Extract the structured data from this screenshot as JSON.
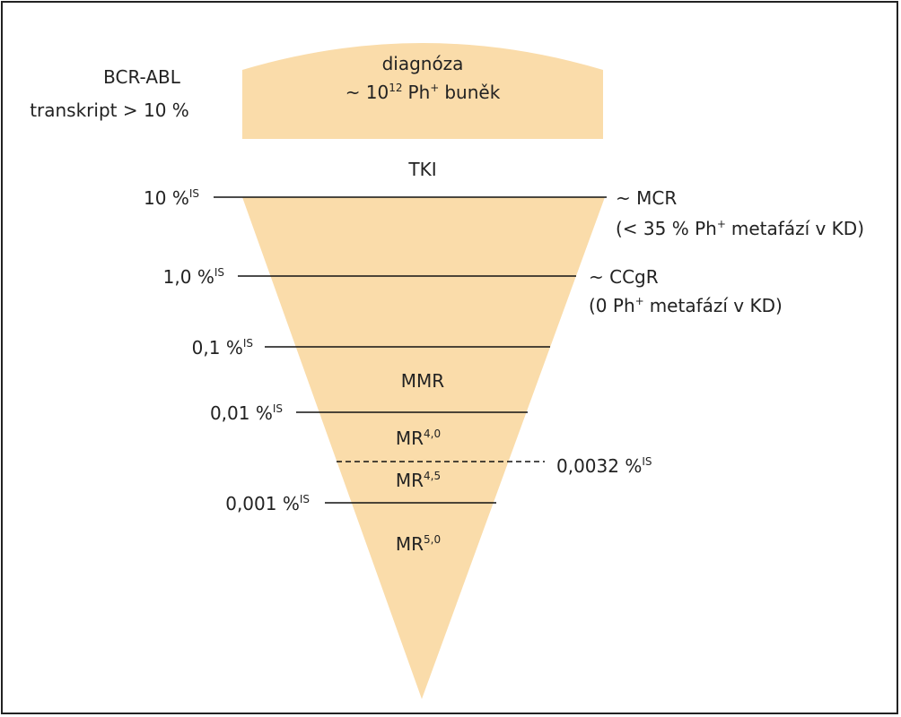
{
  "header_note": {
    "line1": "BCR-ABL",
    "line2": "transkript > 10 %"
  },
  "diagnosis": {
    "line1": "diagnóza",
    "prefix": "~ 10",
    "exp": "12",
    "ph": "Ph",
    "plus": "+",
    "rest": "buněk"
  },
  "therapy": "TKI",
  "levels": [
    {
      "label": "10 %",
      "sup": "IS"
    },
    {
      "label": "1,0 %",
      "sup": "IS"
    },
    {
      "label": "0,1 %",
      "sup": "IS"
    },
    {
      "label": "0,01 %",
      "sup": "IS"
    },
    {
      "label": "0,001 %",
      "sup": "IS"
    }
  ],
  "dashed_level": {
    "label": "0,0032 %",
    "sup": "IS"
  },
  "responses": [
    {
      "line1": "~ MCR",
      "pre": "(< 35 % Ph",
      "plus": "+",
      "post": "metafází v KD)"
    },
    {
      "line1": "~ CCgR",
      "pre": "(0 Ph",
      "plus": "+",
      "post": "metafází v KD)"
    }
  ],
  "zones": [
    {
      "label": "MMR"
    },
    {
      "label": "MR",
      "sup": "4,0"
    },
    {
      "label": "MR",
      "sup": "4,5"
    },
    {
      "label": "MR",
      "sup": "5,0"
    }
  ]
}
